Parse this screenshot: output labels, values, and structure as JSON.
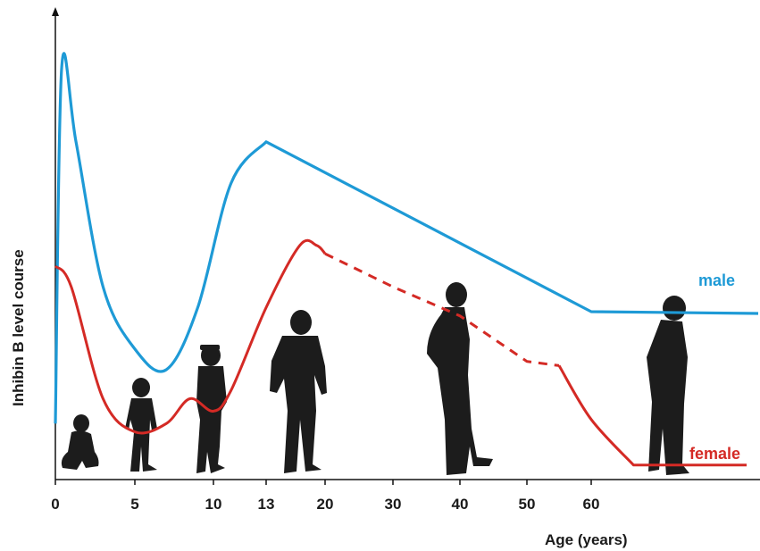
{
  "chart_data": {
    "type": "line",
    "title": "",
    "xlabel": "Age (years)",
    "ylabel": "Inhibin B level course",
    "x_ticks": [
      "0",
      "5",
      "10",
      "13",
      "20",
      "30",
      "40",
      "50",
      "60"
    ],
    "xlim": [
      0,
      100
    ],
    "ylim": [
      0,
      1
    ],
    "grid": false,
    "series": [
      {
        "name": "male",
        "color": "#1e9ad6",
        "style": "solid",
        "points": [
          [
            0,
            0.12
          ],
          [
            0.4,
            0.98
          ],
          [
            1.3,
            0.8
          ],
          [
            3,
            0.45
          ],
          [
            5,
            0.3
          ],
          [
            7,
            0.25
          ],
          [
            9,
            0.4
          ],
          [
            11,
            0.7
          ],
          [
            13,
            0.8
          ],
          [
            20,
            0.74
          ],
          [
            30,
            0.65
          ],
          [
            40,
            0.56
          ],
          [
            50,
            0.47
          ],
          [
            60,
            0.39
          ],
          [
            100,
            0.39
          ]
        ]
      },
      {
        "name": "female",
        "color": "#d42a25",
        "style": "solid-dashed-solid",
        "points": [
          [
            0,
            0.5
          ],
          [
            1,
            0.45
          ],
          [
            3,
            0.18
          ],
          [
            5,
            0.1
          ],
          [
            7,
            0.12
          ],
          [
            8.5,
            0.18
          ],
          [
            10,
            0.15
          ],
          [
            11,
            0.2
          ],
          [
            13,
            0.4
          ],
          [
            17,
            0.55
          ],
          [
            19,
            0.55
          ],
          [
            20,
            0.53
          ],
          [
            30,
            0.45
          ],
          [
            40,
            0.38
          ],
          [
            50,
            0.27
          ],
          [
            55,
            0.26
          ],
          [
            60,
            0.13
          ],
          [
            70,
            0.02
          ],
          [
            100,
            0.02
          ]
        ]
      }
    ],
    "silhouettes": [
      "infant",
      "child-5",
      "child-10",
      "teen",
      "adult-man",
      "elderly-man"
    ]
  }
}
